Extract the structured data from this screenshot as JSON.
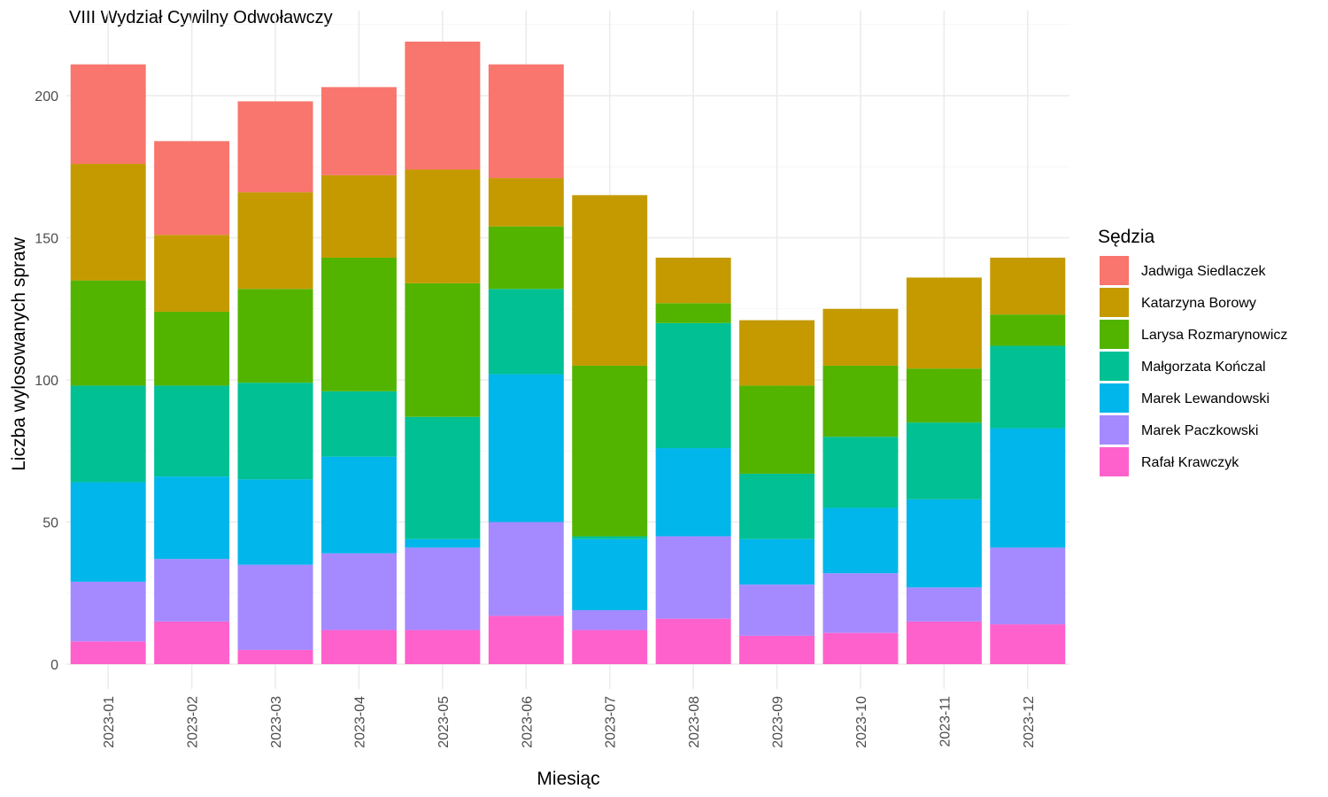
{
  "chart_data": {
    "type": "bar",
    "stacked": true,
    "title": "VIII Wydział Cywilny Odwoławczy",
    "xlabel": "Miesiąc",
    "ylabel": "Liczba wylosowanych spraw",
    "ylim": [
      0,
      220
    ],
    "yticks": [
      0,
      50,
      100,
      150,
      200
    ],
    "grid": true,
    "legend_title": "Sędzia",
    "legend_position": "right",
    "categories": [
      "2023-01",
      "2023-02",
      "2023-03",
      "2023-04",
      "2023-05",
      "2023-06",
      "2023-07",
      "2023-08",
      "2023-09",
      "2023-10",
      "2023-11",
      "2023-12"
    ],
    "series": [
      {
        "name": "Rafał Krawczyk",
        "color": "#FF61CC",
        "values": [
          8,
          15,
          5,
          12,
          12,
          17,
          12,
          16,
          10,
          11,
          15,
          14
        ]
      },
      {
        "name": "Marek Paczkowski",
        "color": "#A58AFF",
        "values": [
          21,
          22,
          30,
          27,
          29,
          33,
          7,
          29,
          18,
          21,
          12,
          27
        ]
      },
      {
        "name": "Marek Lewandowski",
        "color": "#00B6EB",
        "values": [
          35,
          29,
          30,
          34,
          3,
          52,
          25,
          31,
          16,
          23,
          31,
          42
        ]
      },
      {
        "name": "Małgorzata Kończal",
        "color": "#00C094",
        "values": [
          34,
          32,
          34,
          23,
          43,
          30,
          1,
          44,
          23,
          25,
          27,
          29
        ]
      },
      {
        "name": "Larysa Rozmarynowicz",
        "color": "#53B400",
        "values": [
          37,
          26,
          33,
          47,
          47,
          22,
          60,
          7,
          31,
          25,
          19,
          11
        ]
      },
      {
        "name": "Katarzyna Borowy",
        "color": "#C49A00",
        "values": [
          41,
          27,
          34,
          29,
          40,
          17,
          60,
          16,
          23,
          20,
          32,
          20
        ]
      },
      {
        "name": "Jadwiga Siedlaczek",
        "color": "#F8766D",
        "values": [
          35,
          33,
          32,
          31,
          45,
          40,
          0,
          0,
          0,
          0,
          0,
          0
        ]
      }
    ],
    "legend_order": [
      "Jadwiga Siedlaczek",
      "Katarzyna Borowy",
      "Larysa Rozmarynowicz",
      "Małgorzata Kończal",
      "Marek Lewandowski",
      "Marek Paczkowski",
      "Rafał Krawczyk"
    ]
  }
}
